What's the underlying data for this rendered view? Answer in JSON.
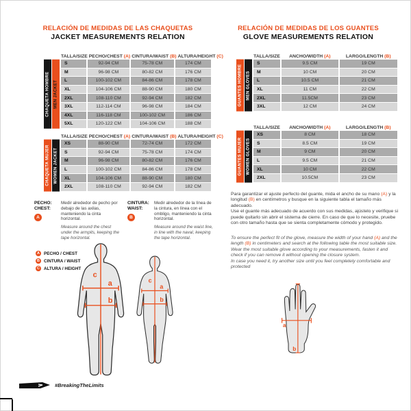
{
  "page": {
    "colors": {
      "orange": "#e94f1d",
      "row_dark": "#ababab",
      "row_light": "#d7d7d7",
      "black": "#161616"
    },
    "left": {
      "title_es": "RELACIÓN DE MEDIDAS DE LAS CHAQUETAS",
      "title_en": "JACKET MEASUREMENTS RELATION",
      "men_jacket": {
        "side_outer": {
          "text": "CHAQUETA HOMBRE",
          "bg": "#161616",
          "color": "#ffffff"
        },
        "side_inner": {
          "text": "MEN JACKET",
          "bg": "#e94f1d",
          "color": "#161616"
        },
        "headers": [
          {
            "text": "TALLA/SIZE",
            "mark": ""
          },
          {
            "text": "PECHO/CHEST",
            "mark": "(A)"
          },
          {
            "text": "CINTURA/WAIST",
            "mark": "(B)"
          },
          {
            "text": "ALTURA/HEIGHT",
            "mark": "(C)"
          }
        ],
        "rows": [
          [
            "S",
            "92-94 CM",
            "75-78 CM",
            "174 CM"
          ],
          [
            "M",
            "96-98 CM",
            "80-82 CM",
            "176 CM"
          ],
          [
            "L",
            "100-102 CM",
            "84-86 CM",
            "178 CM"
          ],
          [
            "XL",
            "104-106 CM",
            "88-90 CM",
            "180 CM"
          ],
          [
            "2XL",
            "108-110 CM",
            "92-94 CM",
            "182 CM"
          ],
          [
            "3XL",
            "112-114 CM",
            "96-98 CM",
            "184 CM"
          ],
          [
            "4XL",
            "116-118 CM",
            "100-102 CM",
            "186 CM"
          ],
          [
            "5XL",
            "120-122 CM",
            "104-106 CM",
            "188 CM"
          ]
        ]
      },
      "women_jacket": {
        "side_outer": {
          "text": "CHAQUETA MUJER",
          "bg": "#e94f1d",
          "color": "#ffffff"
        },
        "side_inner": {
          "text": "WOMEN JACKET",
          "bg": "#161616",
          "color": "#ffffff"
        },
        "headers": [
          {
            "text": "TALLA/SIZE",
            "mark": ""
          },
          {
            "text": "PECHO/CHEST",
            "mark": "(A)"
          },
          {
            "text": "CINTURA/WAIST",
            "mark": "(B)"
          },
          {
            "text": "ALTURA/HEIGHT",
            "mark": "(C)"
          }
        ],
        "rows": [
          [
            "XS",
            "88-90 CM",
            "72-74 CM",
            "172 CM"
          ],
          [
            "S",
            "92-94 CM",
            "75-78 CM",
            "174 CM"
          ],
          [
            "M",
            "96-98 CM",
            "80-82 CM",
            "176 CM"
          ],
          [
            "L",
            "100-102 CM",
            "84-86 CM",
            "178 CM"
          ],
          [
            "XL",
            "104-106 CM",
            "88-90 CM",
            "180 CM"
          ],
          [
            "2XL",
            "108-110 CM",
            "92-94 CM",
            "182 CM"
          ]
        ]
      },
      "chest_note": {
        "term_es": "PECHO:",
        "term_en": "CHEST:",
        "badge": "A",
        "text_es": "Medir alrededor de pecho por debajo de las axilas, manteniendo la cinta horizontal.",
        "text_en": "Measure around the chest under the armpits, keeping the tape horizontal."
      },
      "waist_note": {
        "term_es": "CINTURA:",
        "term_en": "WAIST:",
        "badge": "B",
        "text_es": "Medir alrededor de la línea de la cintura, en línea con el ombligo, manteniendo la cinta horizontal.",
        "text_en": "Measure around the waist line, in line with the naval, keeping the tape horizontal."
      },
      "legend": [
        {
          "mark": "A",
          "text": "PECHO / CHEST"
        },
        {
          "mark": "B",
          "text": "CINTURA / WAIST"
        },
        {
          "mark": "C",
          "text": "ALTURA / HEIGHT"
        }
      ],
      "body_labels": {
        "a": "a",
        "b": "b",
        "c": "c"
      }
    },
    "right": {
      "title_es": "RELACIÓN DE MEDIDAS DE LOS GUANTES",
      "title_en": "GLOVE MEASUREMENTS RELATION",
      "men_gloves": {
        "side_outer": {
          "text": "GUANTES HOMBRE",
          "bg": "#e94f1d",
          "color": "#ffffff"
        },
        "side_inner": {
          "text": "MEN GLOVES",
          "bg": "#161616",
          "color": "#ffffff"
        },
        "headers": [
          {
            "text": "TALLA/SIZE",
            "mark": ""
          },
          {
            "text": "ANCHO/WIDTH",
            "mark": "(A)"
          },
          {
            "text": "LARGO/LENGTH",
            "mark": "(B)"
          }
        ],
        "rows": [
          [
            "S",
            "9.5 CM",
            "19 CM"
          ],
          [
            "M",
            "10 CM",
            "20 CM"
          ],
          [
            "L",
            "10.5 CM",
            "21 CM"
          ],
          [
            "XL",
            "11 CM",
            "22 CM"
          ],
          [
            "2XL",
            "11.5CM",
            "23 CM"
          ],
          [
            "3XL",
            "12 CM",
            "24 CM"
          ]
        ]
      },
      "women_gloves": {
        "side_outer": {
          "text": "GUANTES MUJER",
          "bg": "#e94f1d",
          "color": "#ffffff"
        },
        "side_inner": {
          "text": "WOMEN GLOVES",
          "bg": "#161616",
          "color": "#ffffff"
        },
        "headers": [
          {
            "text": "TALLA/SIZE",
            "mark": ""
          },
          {
            "text": "ANCHO/WIDTH",
            "mark": "(A)"
          },
          {
            "text": "LARGO/LENGTH",
            "mark": "(B)"
          }
        ],
        "rows": [
          [
            "XS",
            "8 CM",
            "18 CM"
          ],
          [
            "S",
            "8.5 CM",
            "19 CM"
          ],
          [
            "M",
            "9 CM",
            "20 CM"
          ],
          [
            "L",
            "9.5 CM",
            "21 CM"
          ],
          [
            "XL",
            "10 CM",
            "22 CM"
          ],
          [
            "2XL",
            "10.5CM",
            "23 CM"
          ]
        ]
      },
      "note_es": "Para garantizar el ajuste perfecto del guante, mida el ancho de su mano {A} y la longitud {B} en centímetros y busque en la siguiente tabla el tamaño más adecuado.\nUse el guante más adecuado de acuerdo con sus medidas, ajústelo y verifique si puede quitarlo sin abrir el sistema de cierre. En caso de que lo necesite, pruebe con otro tamaño hasta que se sienta completamente cómodo y protegido.",
      "note_en": "To ensure the perfect fit of the glove, measure the width of your hand {A} and the length {B} in centimeters and search at the following table the most suitable size. Wear the most suitable glove according to your measurements, fasten it and check if you can remove it without opening the closure system.\nIn case you need it, try another size until you feel completely comfortable and protected",
      "hand_labels": {
        "a": "a",
        "b": "b"
      }
    },
    "footer": {
      "hashtag": "#BreakingTheLimits"
    }
  }
}
